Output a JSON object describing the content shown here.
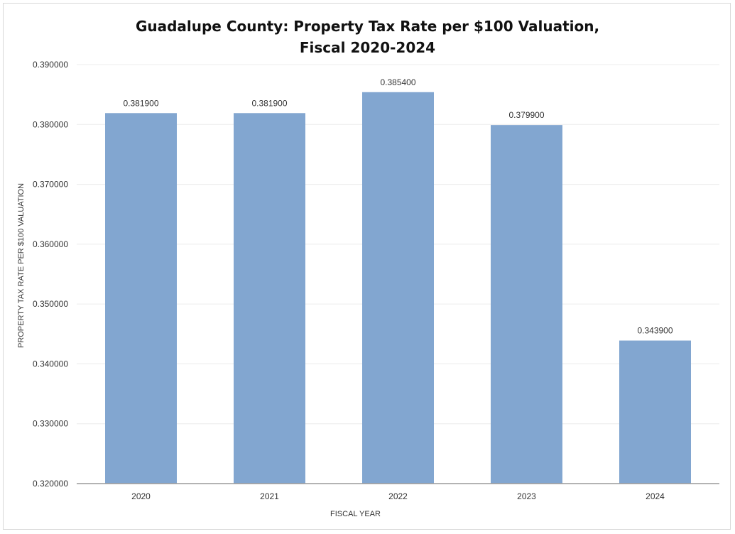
{
  "chart_data": {
    "type": "bar",
    "title_line1": "Guadalupe County: Property Tax Rate per $100 Valuation,",
    "title_line2": "Fiscal 2020-2024",
    "xlabel": "FISCAL YEAR",
    "ylabel": "PROPERTY TAX RATE PER $100 VALUATION",
    "categories": [
      "2020",
      "2021",
      "2022",
      "2023",
      "2024"
    ],
    "values": [
      0.3819,
      0.3819,
      0.3854,
      0.3799,
      0.3439
    ],
    "data_labels": [
      "0.381900",
      "0.381900",
      "0.385400",
      "0.379900",
      "0.343900"
    ],
    "ylim": [
      0.32,
      0.39
    ],
    "yticks": [
      0.32,
      0.33,
      0.34,
      0.35,
      0.36,
      0.37,
      0.38,
      0.39
    ],
    "ytick_labels": [
      "0.320000",
      "0.330000",
      "0.340000",
      "0.350000",
      "0.360000",
      "0.370000",
      "0.380000",
      "0.390000"
    ],
    "bar_color": "#82a6d0",
    "grid": true,
    "legend": "none"
  }
}
